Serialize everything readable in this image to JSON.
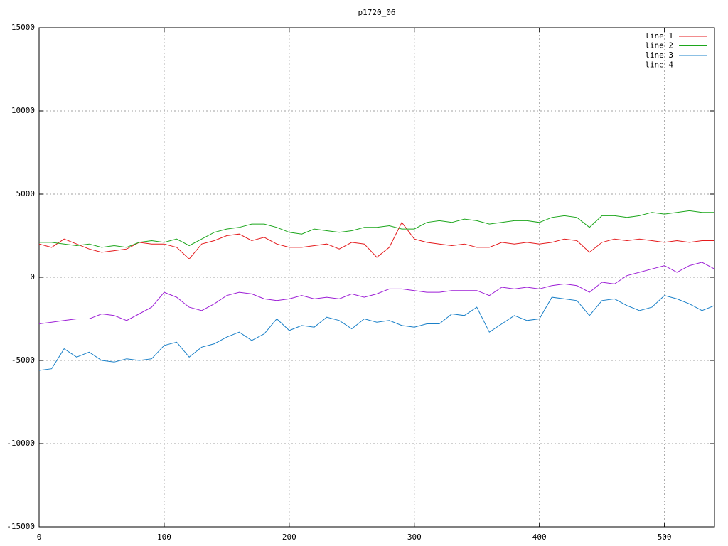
{
  "chart_data": {
    "type": "line",
    "title": "p1720_06",
    "x": [
      0,
      10,
      20,
      30,
      40,
      50,
      60,
      70,
      80,
      90,
      100,
      110,
      120,
      130,
      140,
      150,
      160,
      170,
      180,
      190,
      200,
      210,
      220,
      230,
      240,
      250,
      260,
      270,
      280,
      290,
      300,
      310,
      320,
      330,
      340,
      350,
      360,
      370,
      380,
      390,
      400,
      410,
      420,
      430,
      440,
      450,
      460,
      470,
      480,
      490,
      500,
      510,
      520,
      530,
      540
    ],
    "series": [
      {
        "name": "line 1",
        "color": "#e41a1c",
        "values": [
          2000,
          1800,
          2300,
          2000,
          1700,
          1500,
          1600,
          1700,
          2100,
          2000,
          2000,
          1800,
          1100,
          2000,
          2200,
          2500,
          2600,
          2200,
          2400,
          2000,
          1800,
          1800,
          1900,
          2000,
          1700,
          2100,
          2000,
          1200,
          1800,
          3300,
          2300,
          2100,
          2000,
          1900,
          2000,
          1800,
          1800,
          2100,
          2000,
          2100,
          2000,
          2100,
          2300,
          2200,
          1500,
          2100,
          2300,
          2200,
          2300,
          2200,
          2100,
          2200,
          2100,
          2200,
          2200
        ]
      },
      {
        "name": "line 2",
        "color": "#1ca61c",
        "values": [
          2100,
          2100,
          2000,
          1900,
          2000,
          1800,
          1900,
          1800,
          2100,
          2200,
          2100,
          2300,
          1900,
          2300,
          2700,
          2900,
          3000,
          3200,
          3200,
          3000,
          2700,
          2600,
          2900,
          2800,
          2700,
          2800,
          3000,
          3000,
          3100,
          2900,
          2900,
          3300,
          3400,
          3300,
          3500,
          3400,
          3200,
          3300,
          3400,
          3400,
          3300,
          3600,
          3700,
          3600,
          3000,
          3700,
          3700,
          3600,
          3700,
          3900,
          3800,
          3900,
          4000,
          3900,
          3900
        ]
      },
      {
        "name": "line 3",
        "color": "#1a80c8",
        "values": [
          -5600,
          -5500,
          -4300,
          -4800,
          -4500,
          -5000,
          -5100,
          -4900,
          -5000,
          -4900,
          -4100,
          -3900,
          -4800,
          -4200,
          -4000,
          -3600,
          -3300,
          -3800,
          -3400,
          -2500,
          -3200,
          -2900,
          -3000,
          -2400,
          -2600,
          -3100,
          -2500,
          -2700,
          -2600,
          -2900,
          -3000,
          -2800,
          -2800,
          -2200,
          -2300,
          -1800,
          -3300,
          -2800,
          -2300,
          -2600,
          -2500,
          -1200,
          -1300,
          -1400,
          -2300,
          -1400,
          -1300,
          -1700,
          -2000,
          -1800,
          -1100,
          -1300,
          -1600,
          -2000,
          -1700
        ]
      },
      {
        "name": "line 4",
        "color": "#9d1fd6",
        "values": [
          -2800,
          -2700,
          -2600,
          -2500,
          -2500,
          -2200,
          -2300,
          -2600,
          -2200,
          -1800,
          -900,
          -1200,
          -1800,
          -2000,
          -1600,
          -1100,
          -900,
          -1000,
          -1300,
          -1400,
          -1300,
          -1100,
          -1300,
          -1200,
          -1300,
          -1000,
          -1200,
          -1000,
          -700,
          -700,
          -800,
          -900,
          -900,
          -800,
          -800,
          -800,
          -1100,
          -600,
          -700,
          -600,
          -700,
          -500,
          -400,
          -500,
          -900,
          -300,
          -400,
          100,
          300,
          500,
          700,
          300,
          700,
          900,
          500
        ]
      }
    ],
    "xlim": [
      0,
      540
    ],
    "xticks": [
      0,
      100,
      200,
      300,
      400,
      500
    ],
    "ylim": [
      -15000,
      15000
    ],
    "yticks": [
      -15000,
      -10000,
      -5000,
      0,
      5000,
      10000,
      15000
    ],
    "grid": true,
    "legend": "top-right"
  }
}
